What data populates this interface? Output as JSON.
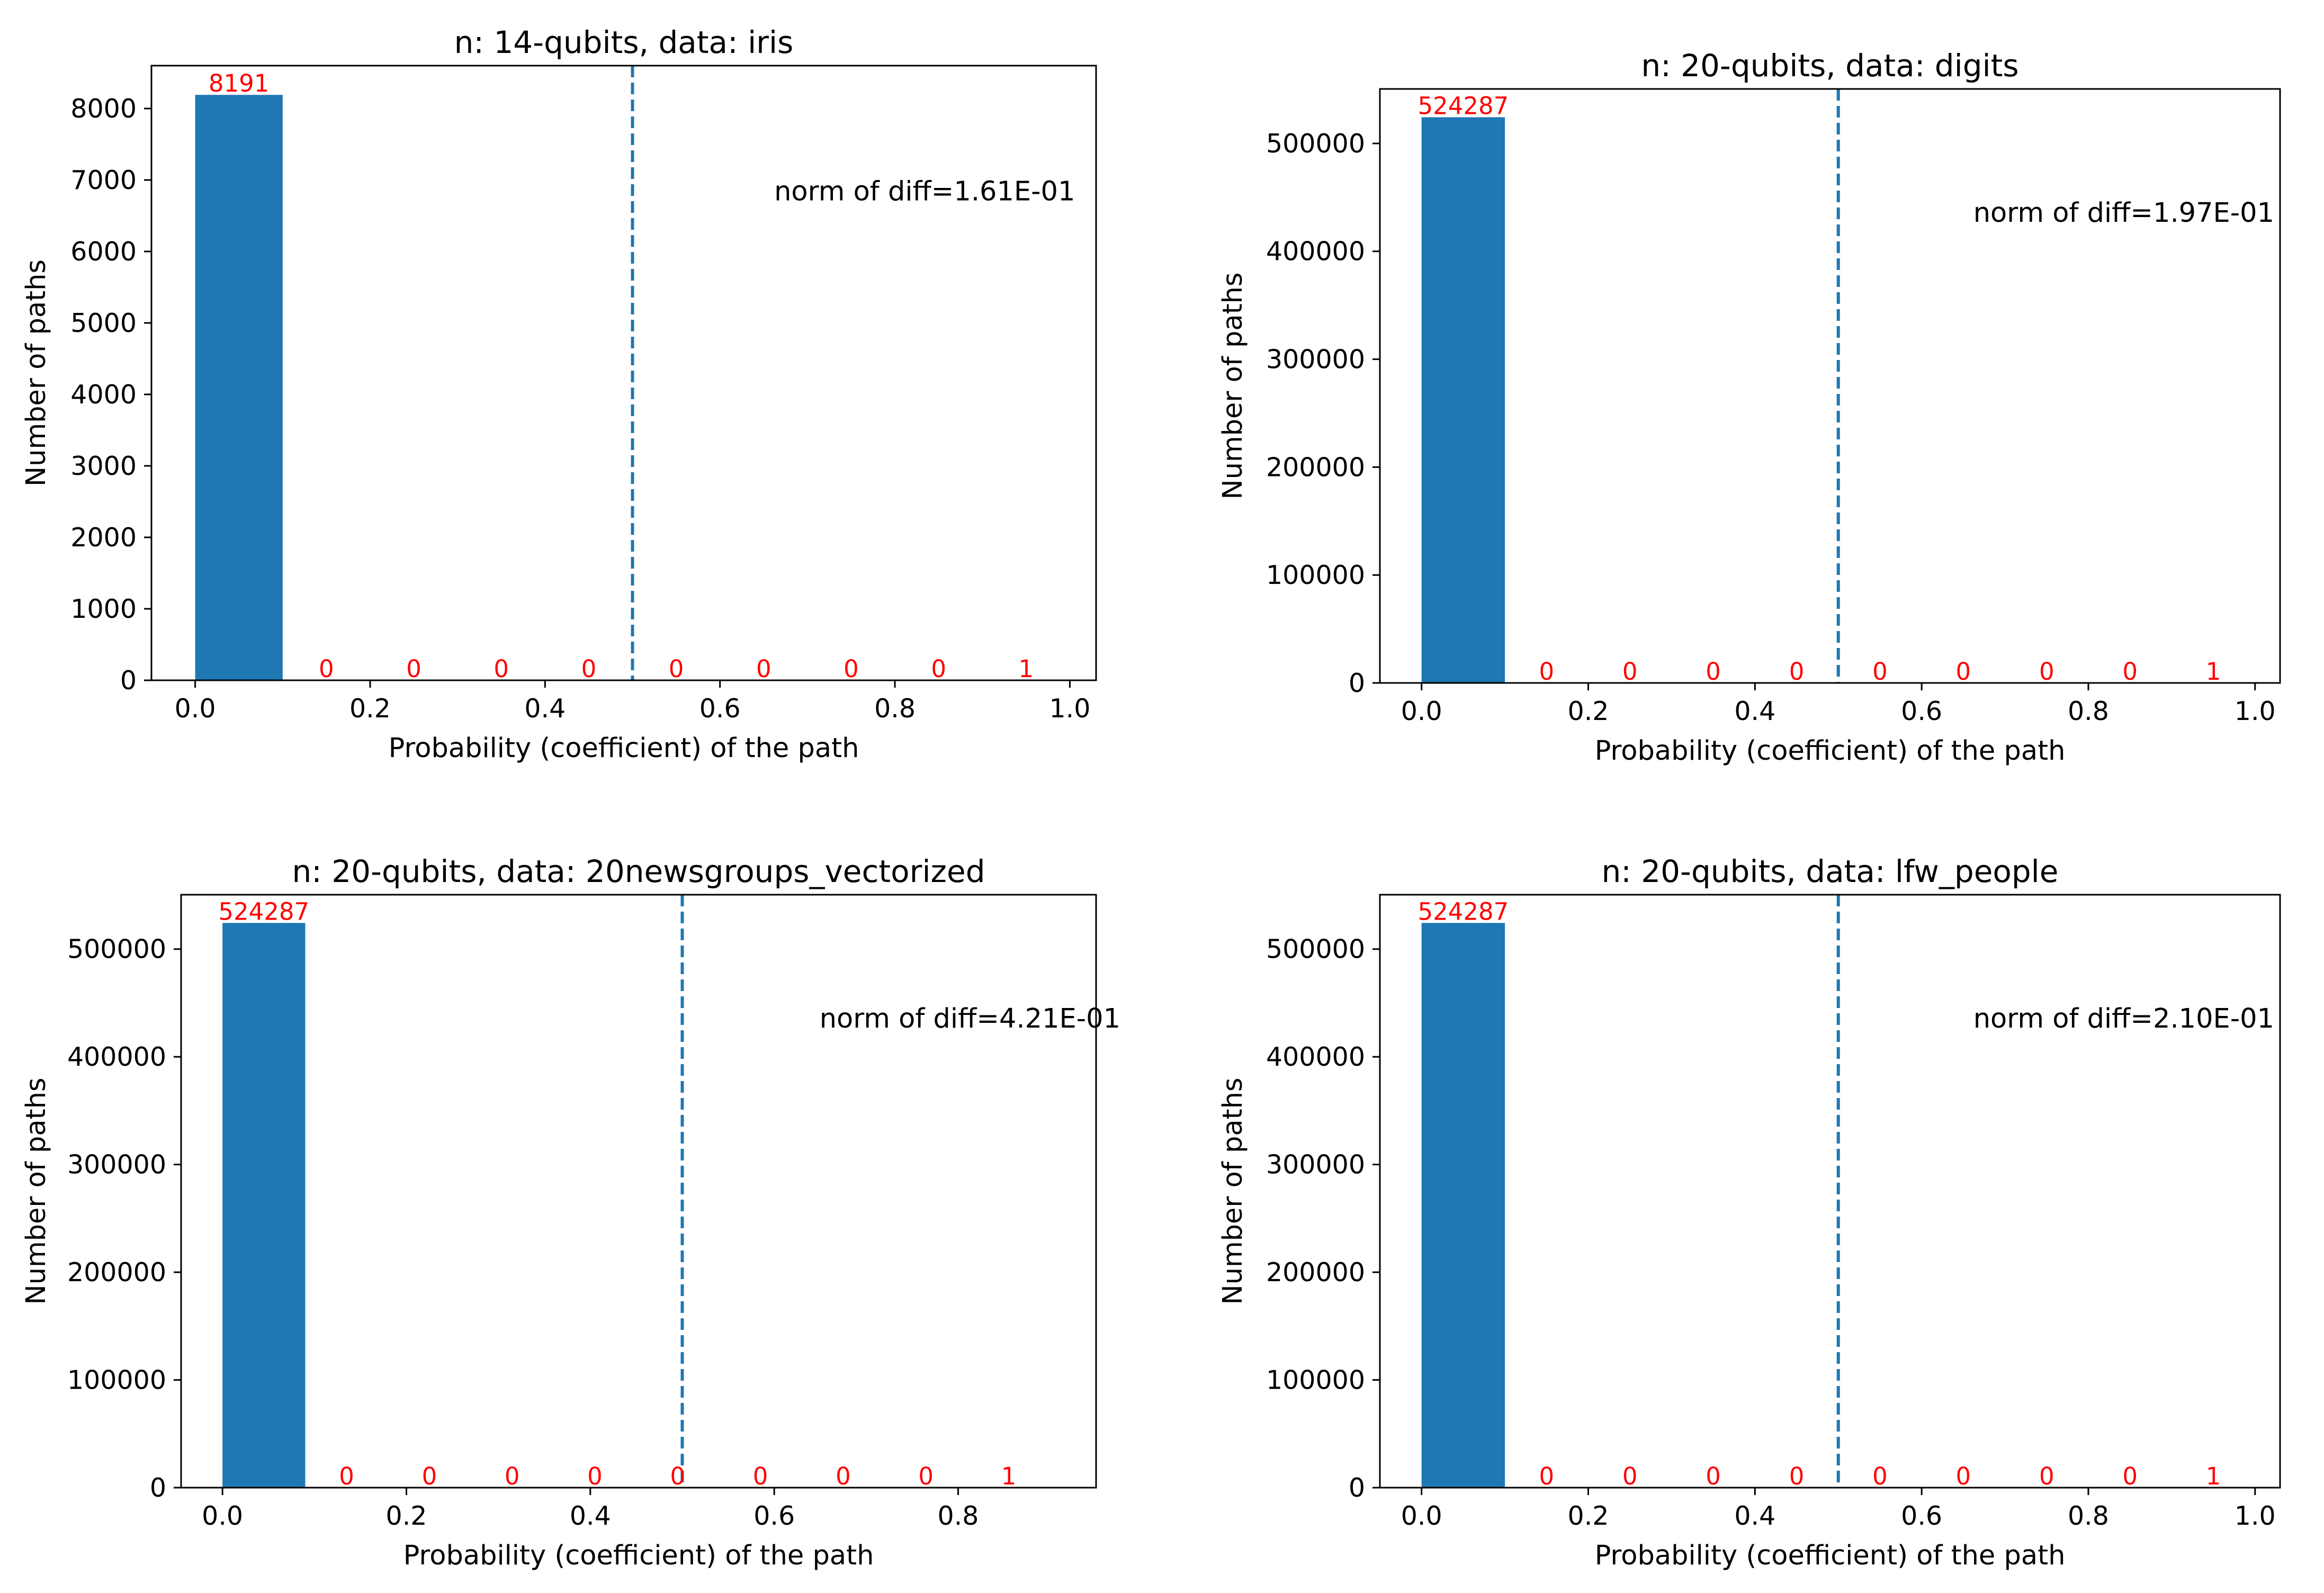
{
  "figure": {
    "background": "#ffffff"
  },
  "chart_data": [
    {
      "type": "bar",
      "title": "n: 14-qubits, data: iris",
      "xlabel": "Probability (coefficient) of the path",
      "ylabel": "Number of paths",
      "bin_edges": [
        0.0,
        0.1,
        0.2,
        0.3,
        0.4,
        0.5,
        0.6,
        0.7,
        0.8,
        0.9,
        1.0
      ],
      "values": [
        8191,
        0,
        0,
        0,
        0,
        0,
        0,
        0,
        0,
        1
      ],
      "value_labels": [
        "8191",
        "0",
        "0",
        "0",
        "0",
        "0",
        "0",
        "0",
        "0",
        "1"
      ],
      "xlim": [
        -0.05,
        1.03
      ],
      "ylim": [
        0,
        8600
      ],
      "xticks": [
        0.0,
        0.2,
        0.4,
        0.6,
        0.8,
        1.0
      ],
      "xtick_labels": [
        "0.0",
        "0.2",
        "0.4",
        "0.6",
        "0.8",
        "1.0"
      ],
      "yticks": [
        0,
        1000,
        2000,
        3000,
        4000,
        5000,
        6000,
        7000,
        8000
      ],
      "ytick_labels": [
        "0",
        "1000",
        "2000",
        "3000",
        "4000",
        "5000",
        "6000",
        "7000",
        "8000"
      ],
      "threshold_x": 0.5,
      "annotation": "norm of diff=1.61E-01",
      "bar_color": "#1f77b4",
      "label_color": "#ff0000",
      "line_color": "#1f77b4"
    },
    {
      "type": "bar",
      "title": "n: 20-qubits, data: digits",
      "xlabel": "Probability (coefficient) of the path",
      "ylabel": "Number of paths",
      "bin_edges": [
        0.0,
        0.1,
        0.2,
        0.3,
        0.4,
        0.5,
        0.6,
        0.7,
        0.8,
        0.9,
        1.0
      ],
      "values": [
        524287,
        0,
        0,
        0,
        0,
        0,
        0,
        0,
        0,
        1
      ],
      "value_labels": [
        "524287",
        "0",
        "0",
        "0",
        "0",
        "0",
        "0",
        "0",
        "0",
        "1"
      ],
      "xlim": [
        -0.05,
        1.03
      ],
      "ylim": [
        0,
        550500
      ],
      "xticks": [
        0.0,
        0.2,
        0.4,
        0.6,
        0.8,
        1.0
      ],
      "xtick_labels": [
        "0.0",
        "0.2",
        "0.4",
        "0.6",
        "0.8",
        "1.0"
      ],
      "yticks": [
        0,
        100000,
        200000,
        300000,
        400000,
        500000
      ],
      "ytick_labels": [
        "0",
        "100000",
        "200000",
        "300000",
        "400000",
        "500000"
      ],
      "threshold_x": 0.5,
      "annotation": "norm of diff=1.97E-01",
      "bar_color": "#1f77b4",
      "label_color": "#ff0000",
      "line_color": "#1f77b4"
    },
    {
      "type": "bar",
      "title": "n: 20-qubits, data: 20newsgroups_vectorized",
      "xlabel": "Probability (coefficient) of the path",
      "ylabel": "Number of paths",
      "bin_edges": [
        0.0,
        0.09,
        0.18,
        0.27,
        0.36,
        0.45,
        0.54,
        0.63,
        0.72,
        0.81,
        0.9
      ],
      "values": [
        524287,
        0,
        0,
        0,
        0,
        0,
        0,
        0,
        0,
        1
      ],
      "value_labels": [
        "524287",
        "0",
        "0",
        "0",
        "0",
        "0",
        "0",
        "0",
        "0",
        "1"
      ],
      "xlim": [
        -0.045,
        0.95
      ],
      "ylim": [
        0,
        550500
      ],
      "xticks": [
        0.0,
        0.2,
        0.4,
        0.6,
        0.8
      ],
      "xtick_labels": [
        "0.0",
        "0.2",
        "0.4",
        "0.6",
        "0.8"
      ],
      "yticks": [
        0,
        100000,
        200000,
        300000,
        400000,
        500000
      ],
      "ytick_labels": [
        "0",
        "100000",
        "200000",
        "300000",
        "400000",
        "500000"
      ],
      "threshold_x": 0.5,
      "annotation": "norm of diff=4.21E-01",
      "bar_color": "#1f77b4",
      "label_color": "#ff0000",
      "line_color": "#1f77b4"
    },
    {
      "type": "bar",
      "title": "n: 20-qubits, data: lfw_people",
      "xlabel": "Probability (coefficient) of the path",
      "ylabel": "Number of paths",
      "bin_edges": [
        0.0,
        0.1,
        0.2,
        0.3,
        0.4,
        0.5,
        0.6,
        0.7,
        0.8,
        0.9,
        1.0
      ],
      "values": [
        524287,
        0,
        0,
        0,
        0,
        0,
        0,
        0,
        0,
        1
      ],
      "value_labels": [
        "524287",
        "0",
        "0",
        "0",
        "0",
        "0",
        "0",
        "0",
        "0",
        "1"
      ],
      "xlim": [
        -0.05,
        1.03
      ],
      "ylim": [
        0,
        550500
      ],
      "xticks": [
        0.0,
        0.2,
        0.4,
        0.6,
        0.8,
        1.0
      ],
      "xtick_labels": [
        "0.0",
        "0.2",
        "0.4",
        "0.6",
        "0.8",
        "1.0"
      ],
      "yticks": [
        0,
        100000,
        200000,
        300000,
        400000,
        500000
      ],
      "ytick_labels": [
        "0",
        "100000",
        "200000",
        "300000",
        "400000",
        "500000"
      ],
      "threshold_x": 0.5,
      "annotation": "norm of diff=2.10E-01",
      "bar_color": "#1f77b4",
      "label_color": "#ff0000",
      "line_color": "#1f77b4"
    }
  ]
}
